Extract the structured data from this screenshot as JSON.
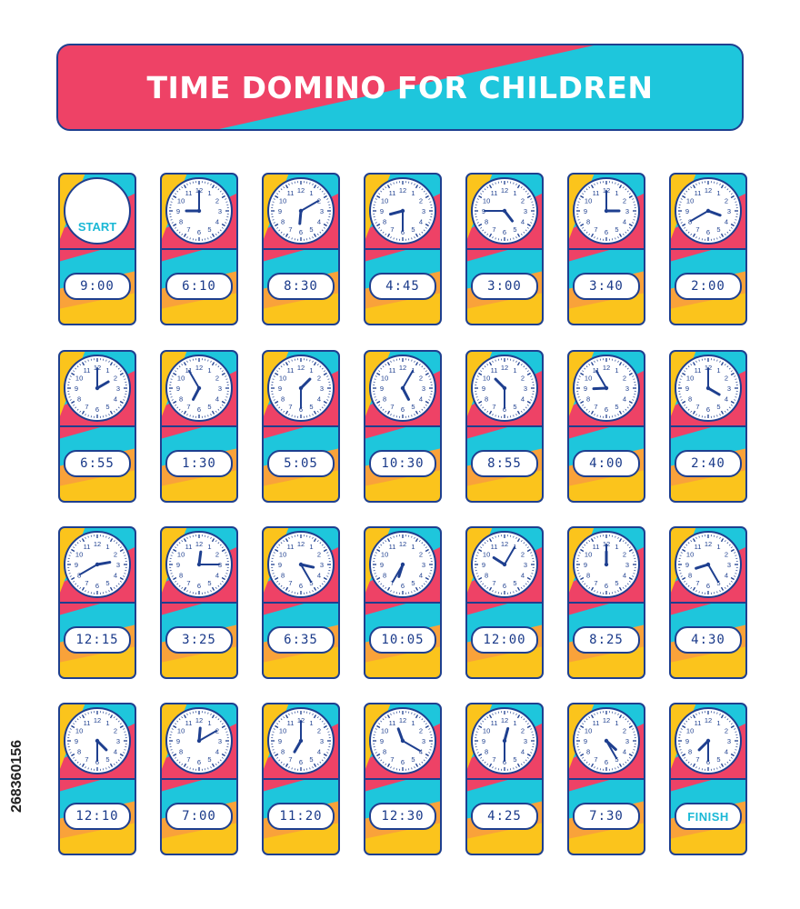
{
  "title": "TIME DOMINO FOR CHILDREN",
  "stock_id": "268360156",
  "colors": {
    "pink": "#ee4266",
    "cyan": "#1ec6dc",
    "yellow": "#fbc41c",
    "orange": "#f9a23a",
    "navy": "#1e3f8f"
  },
  "clock_numerals": [
    "12",
    "1",
    "2",
    "3",
    "4",
    "5",
    "6",
    "7",
    "8",
    "9",
    "10",
    "11"
  ],
  "rows": [
    [
      {
        "clock": "START",
        "digital": "9:00"
      },
      {
        "clock": "9:00",
        "digital": "6:10"
      },
      {
        "clock": "6:10",
        "digital": "8:30"
      },
      {
        "clock": "8:30",
        "digital": "4:45"
      },
      {
        "clock": "4:45",
        "digital": "3:00"
      },
      {
        "clock": "3:00",
        "digital": "3:40"
      },
      {
        "clock": "3:40",
        "digital": "2:00"
      }
    ],
    [
      {
        "clock": "2:00",
        "digital": "6:55"
      },
      {
        "clock": "6:55",
        "digital": "1:30"
      },
      {
        "clock": "1:30",
        "digital": "5:05"
      },
      {
        "clock": "5:05",
        "digital": "10:30"
      },
      {
        "clock": "10:30",
        "digital": "8:55"
      },
      {
        "clock": "8:55",
        "digital": "4:00"
      },
      {
        "clock": "4:00",
        "digital": "2:40"
      }
    ],
    [
      {
        "clock": "2:40",
        "digital": "12:15"
      },
      {
        "clock": "12:15",
        "digital": "3:25"
      },
      {
        "clock": "3:25",
        "digital": "6:35"
      },
      {
        "clock": "6:35",
        "digital": "10:05"
      },
      {
        "clock": "10:05",
        "digital": "12:00"
      },
      {
        "clock": "12:00",
        "digital": "8:25"
      },
      {
        "clock": "8:25",
        "digital": "4:30"
      }
    ],
    [
      {
        "clock": "4:30",
        "digital": "12:10"
      },
      {
        "clock": "12:10",
        "digital": "7:00"
      },
      {
        "clock": "7:00",
        "digital": "11:20"
      },
      {
        "clock": "11:20",
        "digital": "12:30"
      },
      {
        "clock": "12:30",
        "digital": "4:25"
      },
      {
        "clock": "4:25",
        "digital": "7:30"
      },
      {
        "clock": "7:30",
        "digital": "FINISH"
      }
    ]
  ]
}
